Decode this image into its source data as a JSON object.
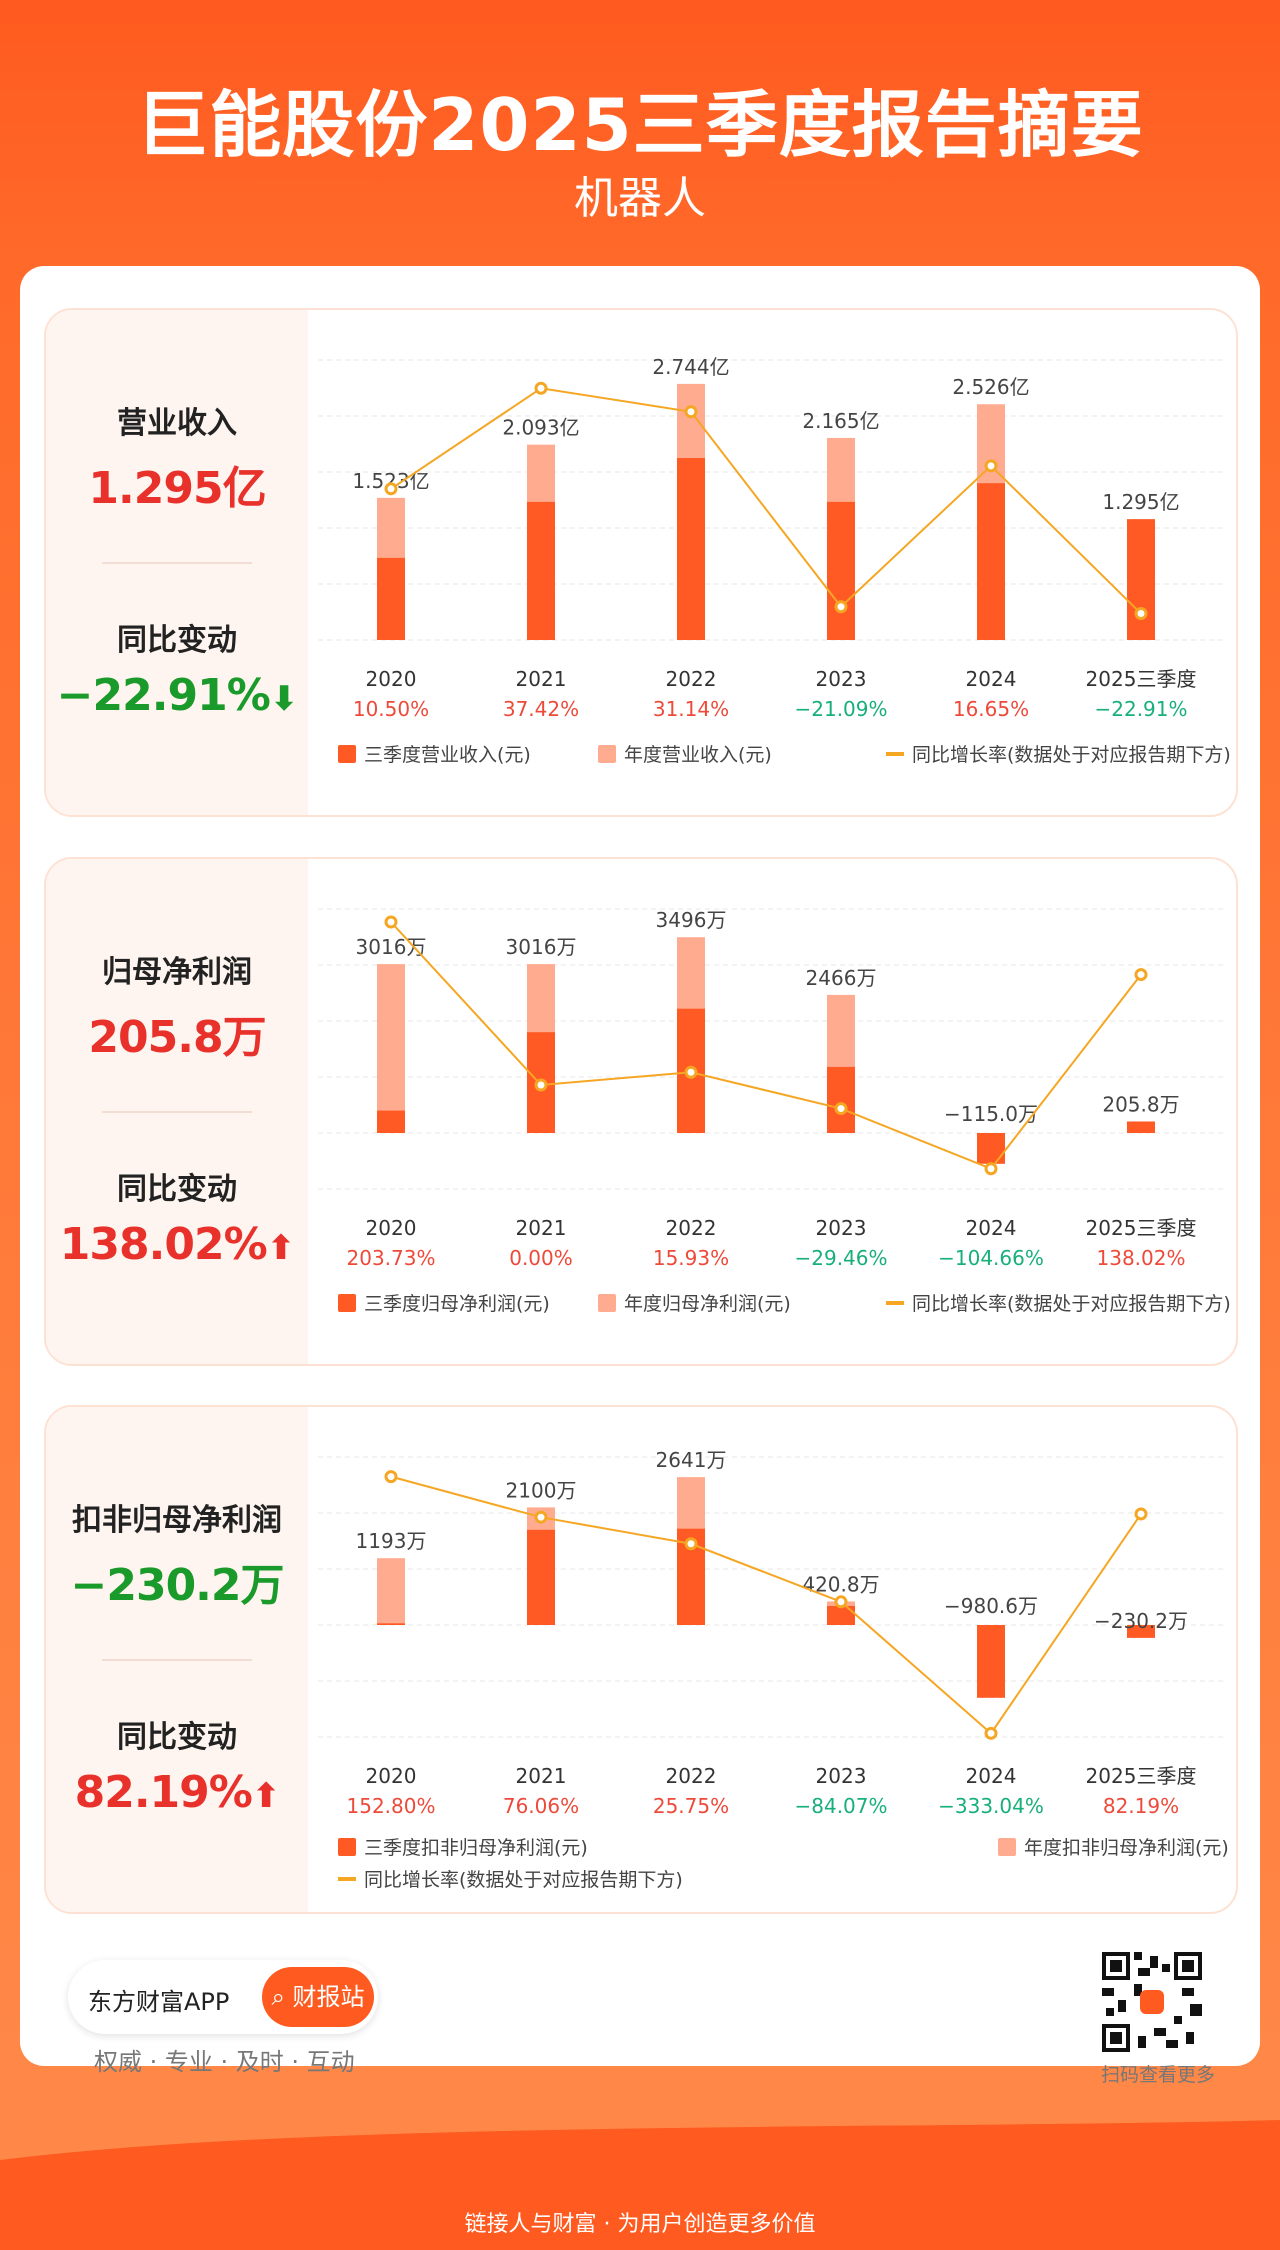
{
  "header": {
    "title": "巨能股份2025三季度报告摘要",
    "subtitle": "机器人"
  },
  "footer": {
    "app_name": "东方财富APP",
    "search_button": "财报站",
    "slogan": "权威 · 专业 · 及时 · 互动",
    "qr_caption": "扫码查看更多",
    "bottom_text": "链接人与财富 · 为用户创造更多价值"
  },
  "colors": {
    "q3": "#ff5a23",
    "annual": "#ffab90",
    "line": "#f5a623",
    "up": "#e8312b",
    "down": "#1a9a2a"
  },
  "panels": [
    {
      "metric_label": "营业收入",
      "metric_value": "1.295亿",
      "change_label": "同比变动",
      "change_value": "−22.91%",
      "change_dir": "down"
    },
    {
      "metric_label": "归母净利润",
      "metric_value": "205.8万",
      "change_label": "同比变动",
      "change_value": "138.02%",
      "change_dir": "up"
    },
    {
      "metric_label": "扣非归母净利润",
      "metric_value": "−230.2万",
      "change_label": "同比变动",
      "change_value": "82.19%",
      "change_dir": "up"
    }
  ],
  "chart_data": [
    {
      "type": "bar",
      "categories": [
        "2020",
        "2021",
        "2022",
        "2023",
        "2024",
        "2025三季度"
      ],
      "series": [
        {
          "name": "三季度营业收入(元)",
          "values": [
            0.88,
            1.48,
            1.95,
            1.48,
            1.68,
            1.295
          ]
        },
        {
          "name": "年度营业收入(元)",
          "values": [
            1.523,
            2.093,
            2.744,
            2.165,
            2.526,
            null
          ]
        },
        {
          "name": "同比增长率(数据处于对应报告期下方)",
          "values": [
            10.5,
            37.42,
            31.14,
            -21.09,
            16.65,
            -22.91
          ]
        }
      ],
      "bar_labels": [
        "1.523亿",
        "2.093亿",
        "2.744亿",
        "2.165亿",
        "2.526亿",
        "1.295亿"
      ],
      "growth_labels": [
        "10.50%",
        "37.42%",
        "31.14%",
        "−21.09%",
        "16.65%",
        "−22.91%"
      ],
      "ylim": [
        0,
        3.0
      ],
      "growth_ylim": [
        -30,
        45
      ],
      "legend_layout": "one-row"
    },
    {
      "type": "bar",
      "categories": [
        "2020",
        "2021",
        "2022",
        "2023",
        "2024",
        "2025三季度"
      ],
      "series": [
        {
          "name": "三季度归母净利润(元)",
          "values": [
            400,
            1800,
            2220,
            1180,
            -550,
            205.8
          ]
        },
        {
          "name": "年度归母净利润(元)",
          "values": [
            3016,
            3016,
            3496,
            2466,
            -115.0,
            null
          ]
        },
        {
          "name": "同比增长率(数据处于对应报告期下方)",
          "values": [
            203.73,
            0.0,
            15.93,
            -29.46,
            -104.66,
            138.02
          ]
        }
      ],
      "bar_labels": [
        "3016万",
        "3016万",
        "3496万",
        "2466万",
        "−115.0万",
        "205.8万"
      ],
      "growth_labels": [
        "203.73%",
        "0.00%",
        "15.93%",
        "−29.46%",
        "−104.66%",
        "138.02%"
      ],
      "ylim": [
        -1000,
        4000
      ],
      "growth_ylim": [
        -130,
        220
      ],
      "legend_layout": "one-row"
    },
    {
      "type": "bar",
      "categories": [
        "2020",
        "2021",
        "2022",
        "2023",
        "2024",
        "2025三季度"
      ],
      "series": [
        {
          "name": "三季度扣非归母净利润(元)",
          "values": [
            30,
            1700,
            1720,
            340,
            -1300,
            -230.2
          ]
        },
        {
          "name": "年度扣非归母净利润(元)",
          "values": [
            1193,
            2100,
            2641,
            420.8,
            -980.6,
            null
          ]
        },
        {
          "name": "同比增长率(数据处于对应报告期下方)",
          "values": [
            152.8,
            76.06,
            25.75,
            -84.07,
            -333.04,
            82.19
          ]
        }
      ],
      "bar_labels": [
        "1193万",
        "2100万",
        "2641万",
        "420.8万",
        "−980.6万",
        "−230.2万"
      ],
      "growth_labels": [
        "152.80%",
        "76.06%",
        "25.75%",
        "−84.07%",
        "−333.04%",
        "82.19%"
      ],
      "ylim": [
        -2000,
        3000
      ],
      "growth_ylim": [
        -340,
        190
      ],
      "legend_layout": "two-row"
    }
  ]
}
